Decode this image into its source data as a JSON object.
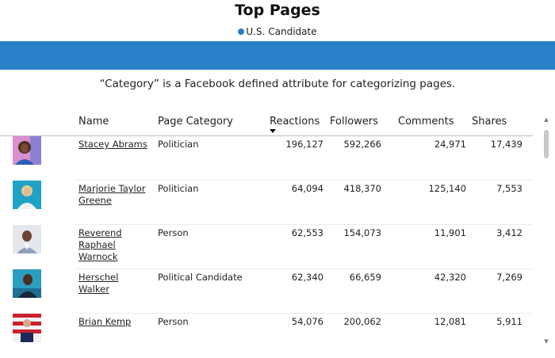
{
  "title": "Top Pages",
  "legend": {
    "label": "U.S. Candidate",
    "color": "#2a7fc9"
  },
  "band_color": "#2a7fc9",
  "note": "“Category” is a Facebook defined attribute for categorizing pages.",
  "columns": {
    "name": "Name",
    "category": "Page Category",
    "reactions": "Reactions",
    "followers": "Followers",
    "comments": "Comments",
    "shares": "Shares"
  },
  "sort": {
    "column": "reactions",
    "direction": "descending"
  },
  "rows": [
    {
      "name": "Stacey Abrams",
      "category": "Politician",
      "reactions": "196,127",
      "followers": "592,266",
      "comments": "24,971",
      "shares": "17,439"
    },
    {
      "name": "Marjorie Taylor Greene",
      "category": "Politician",
      "reactions": "64,094",
      "followers": "418,370",
      "comments": "125,140",
      "shares": "7,553"
    },
    {
      "name": "Reverend Raphael Warnock",
      "category": "Person",
      "reactions": "62,553",
      "followers": "154,073",
      "comments": "11,901",
      "shares": "3,412"
    },
    {
      "name": "Herschel Walker",
      "category": "Political Candidate",
      "reactions": "62,340",
      "followers": "66,659",
      "comments": "42,320",
      "shares": "7,269"
    },
    {
      "name": "Brian Kemp",
      "category": "Person",
      "reactions": "54,076",
      "followers": "200,062",
      "comments": "12,081",
      "shares": "5,911"
    }
  ]
}
